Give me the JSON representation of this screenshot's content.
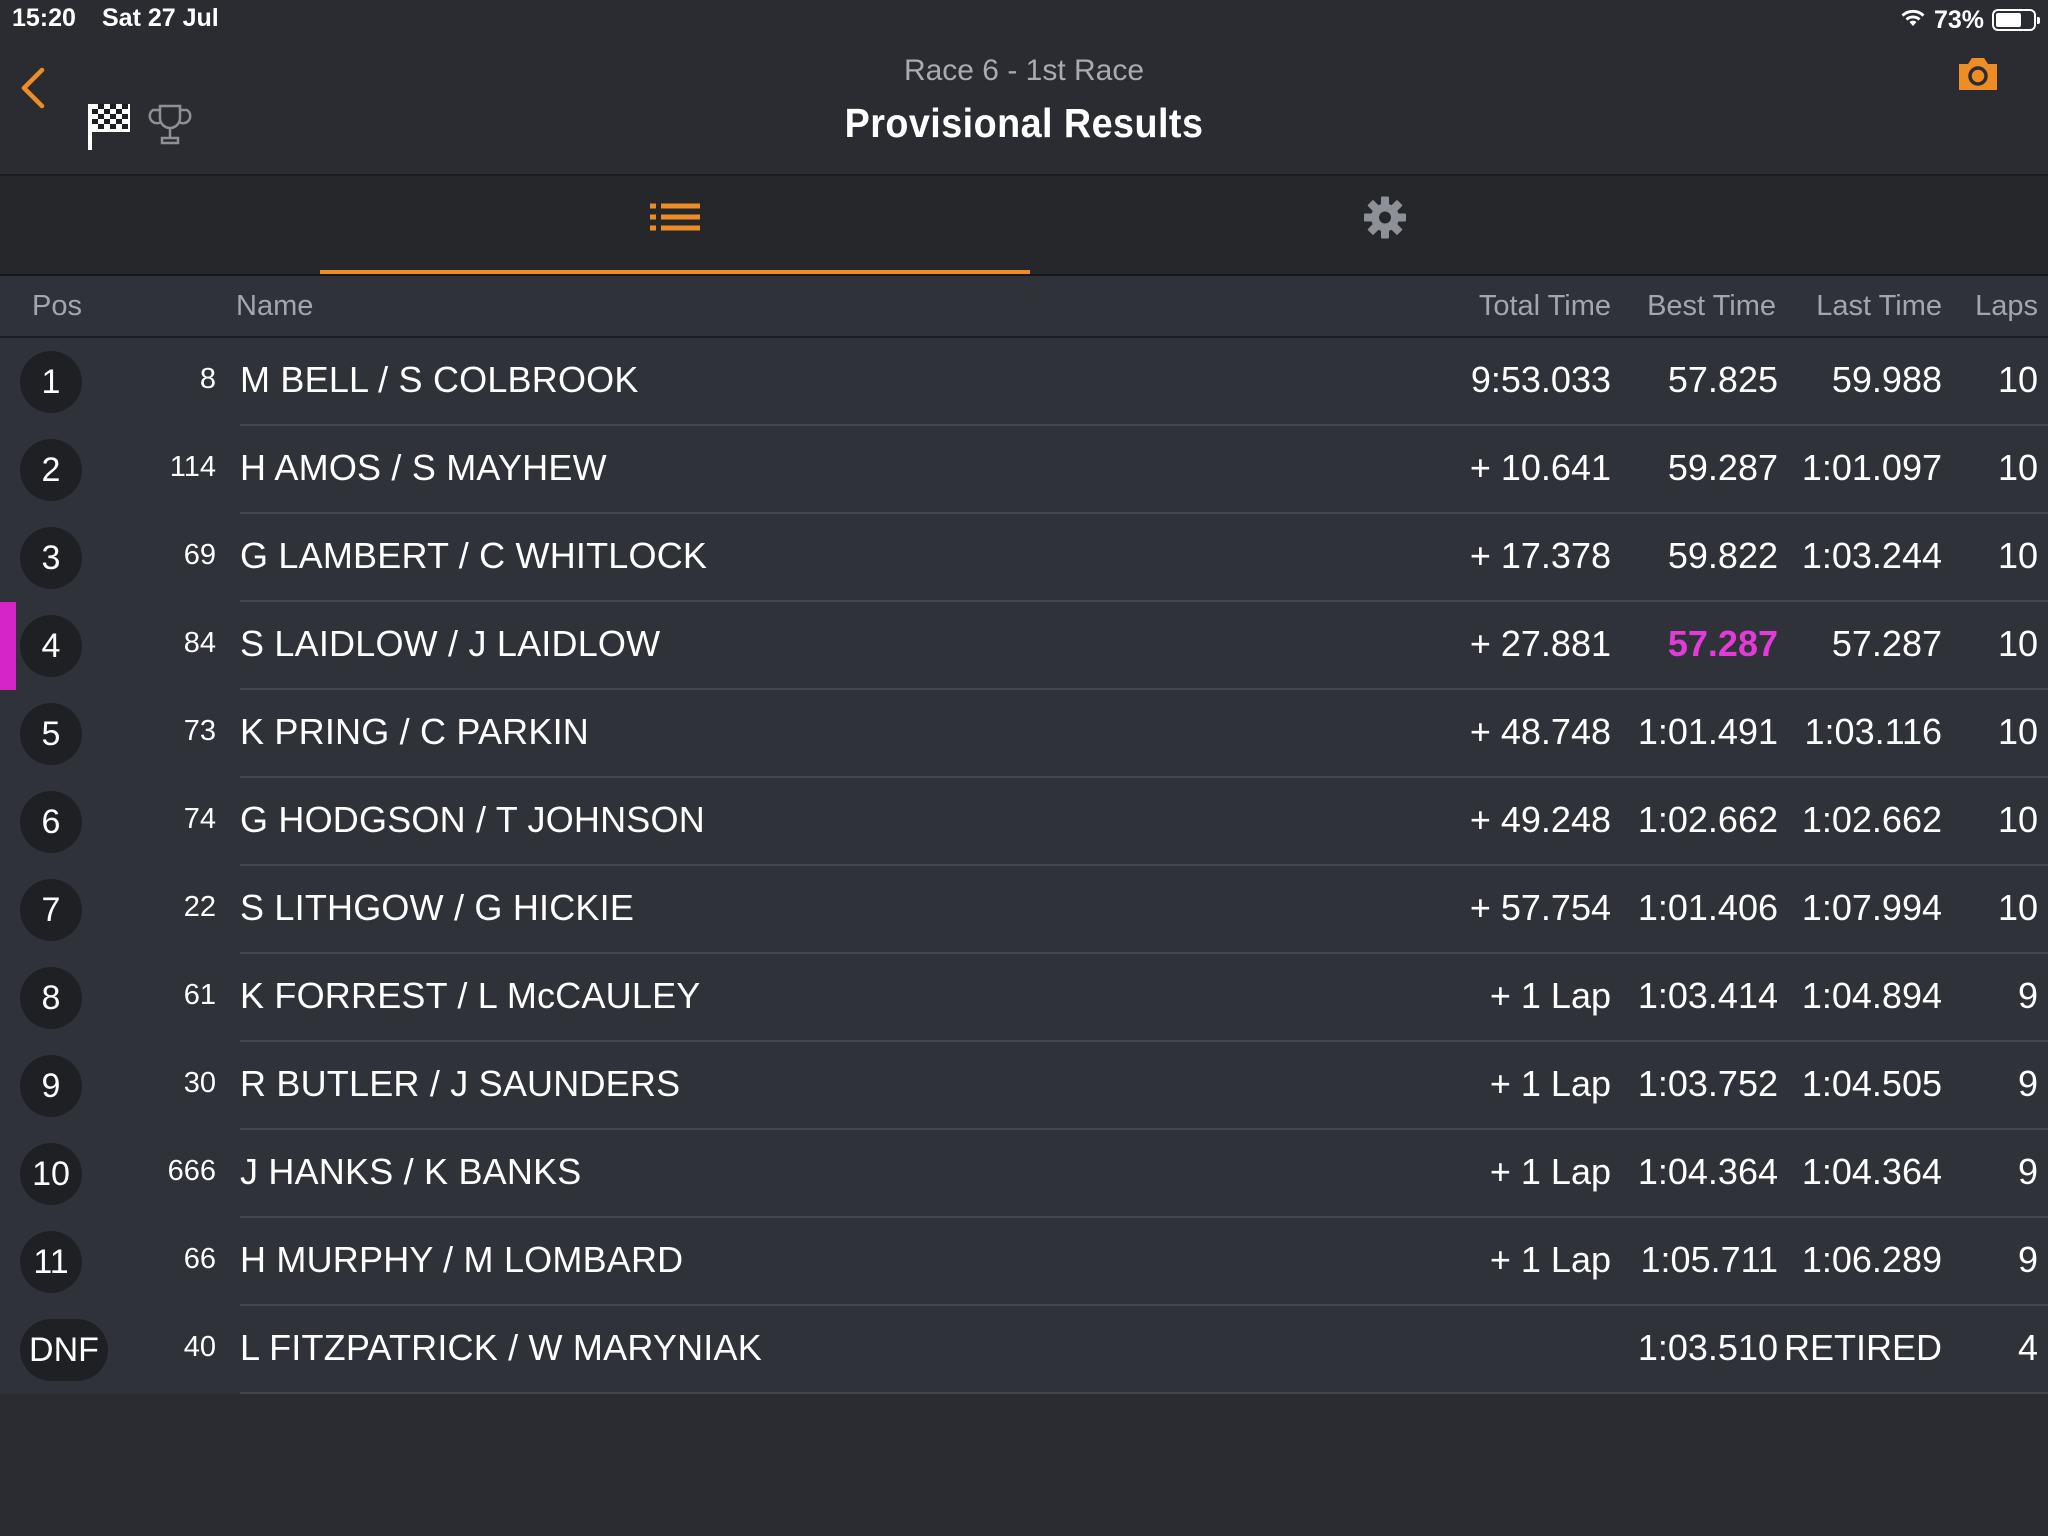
{
  "status_bar": {
    "time": "15:20",
    "date": "Sat 27 Jul",
    "battery": "73%",
    "battery_level": 0.73
  },
  "header": {
    "subtitle": "Race 6 - 1st Race",
    "title": "Provisional Results",
    "accent_color": "#ee8c25"
  },
  "tabs": [
    {
      "icon": "list-icon",
      "active": true
    },
    {
      "icon": "gear-icon",
      "active": false
    }
  ],
  "table": {
    "columns": {
      "pos": "Pos",
      "name": "Name",
      "total": "Total Time",
      "best": "Best Time",
      "last": "Last Time",
      "laps": "Laps"
    },
    "fastest_color": "#e43ad9",
    "rows": [
      {
        "pos": "1",
        "num": "8",
        "name": "M BELL / S COLBROOK",
        "total": "9:53.033",
        "best": "57.825",
        "last": "59.988",
        "laps": "10"
      },
      {
        "pos": "2",
        "num": "114",
        "name": "H AMOS / S MAYHEW",
        "total": "+ 10.641",
        "best": "59.287",
        "last": "1:01.097",
        "laps": "10"
      },
      {
        "pos": "3",
        "num": "69",
        "name": "G LAMBERT / C WHITLOCK",
        "total": "+ 17.378",
        "best": "59.822",
        "last": "1:03.244",
        "laps": "10"
      },
      {
        "pos": "4",
        "num": "84",
        "name": "S LAIDLOW / J LAIDLOW",
        "total": "+ 27.881",
        "best": "57.287",
        "last": "57.287",
        "laps": "10",
        "fastest": true
      },
      {
        "pos": "5",
        "num": "73",
        "name": "K PRING / C PARKIN",
        "total": "+ 48.748",
        "best": "1:01.491",
        "last": "1:03.116",
        "laps": "10"
      },
      {
        "pos": "6",
        "num": "74",
        "name": "G HODGSON / T JOHNSON",
        "total": "+ 49.248",
        "best": "1:02.662",
        "last": "1:02.662",
        "laps": "10"
      },
      {
        "pos": "7",
        "num": "22",
        "name": "S LITHGOW / G HICKIE",
        "total": "+ 57.754",
        "best": "1:01.406",
        "last": "1:07.994",
        "laps": "10"
      },
      {
        "pos": "8",
        "num": "61",
        "name": "K FORREST / L McCAULEY",
        "total": "+ 1 Lap",
        "best": "1:03.414",
        "last": "1:04.894",
        "laps": "9"
      },
      {
        "pos": "9",
        "num": "30",
        "name": "R BUTLER / J SAUNDERS",
        "total": "+ 1 Lap",
        "best": "1:03.752",
        "last": "1:04.505",
        "laps": "9"
      },
      {
        "pos": "10",
        "num": "666",
        "name": "J HANKS / K BANKS",
        "total": "+ 1 Lap",
        "best": "1:04.364",
        "last": "1:04.364",
        "laps": "9"
      },
      {
        "pos": "11",
        "num": "66",
        "name": "H MURPHY / M LOMBARD",
        "total": "+ 1 Lap",
        "best": "1:05.711",
        "last": "1:06.289",
        "laps": "9"
      },
      {
        "pos": "DNF",
        "num": "40",
        "name": "L FITZPATRICK / W MARYNIAK",
        "total": "",
        "best": "1:03.510",
        "last": "RETIRED",
        "laps": "4"
      }
    ]
  }
}
